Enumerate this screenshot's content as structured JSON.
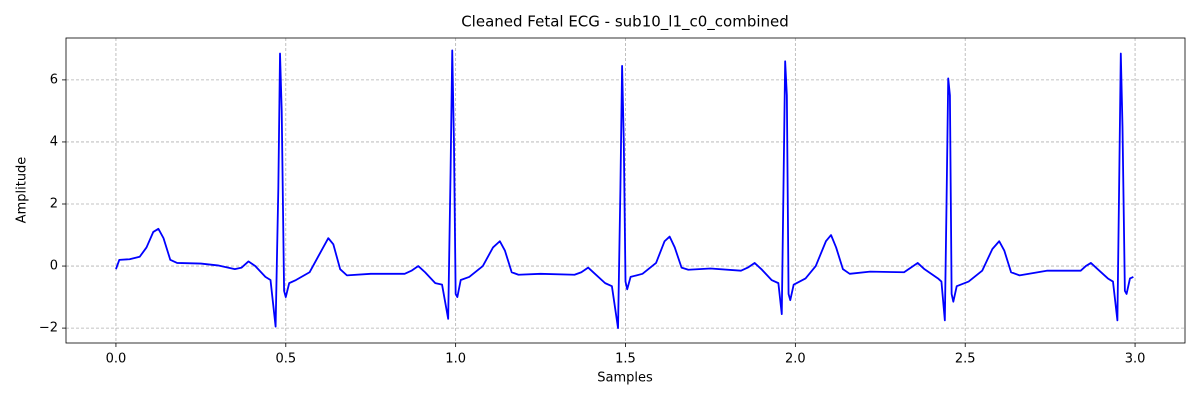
{
  "chart_data": {
    "type": "line",
    "title": "Cleaned Fetal ECG - sub10_l1_c0_combined",
    "xlabel": "Samples",
    "ylabel": "Amplitude",
    "color": "#0000ff",
    "grid": true,
    "xlim": [
      -0.147,
      3.147
    ],
    "ylim": [
      -2.48,
      7.35
    ],
    "xticks": [
      {
        "value": 0,
        "label": "0.0"
      },
      {
        "value": 0.5,
        "label": "0.5"
      },
      {
        "value": 1,
        "label": "1.0"
      },
      {
        "value": 1.5,
        "label": "1.5"
      },
      {
        "value": 2,
        "label": "2.0"
      },
      {
        "value": 2.5,
        "label": "2.5"
      },
      {
        "value": 3,
        "label": "3.0"
      }
    ],
    "yticks": [
      {
        "value": -2,
        "label": "−2"
      },
      0,
      2,
      4,
      6
    ],
    "x": [
      0.0,
      0.01,
      0.04,
      0.07,
      0.09,
      0.11,
      0.125,
      0.14,
      0.16,
      0.18,
      0.25,
      0.3,
      0.35,
      0.37,
      0.39,
      0.41,
      0.44,
      0.455,
      0.47,
      0.478,
      0.483,
      0.488,
      0.495,
      0.5,
      0.51,
      0.53,
      0.57,
      0.6,
      0.625,
      0.64,
      0.66,
      0.68,
      0.75,
      0.85,
      0.87,
      0.89,
      0.91,
      0.94,
      0.96,
      0.978,
      0.985,
      0.99,
      0.995,
      1.0,
      1.005,
      1.015,
      1.04,
      1.08,
      1.11,
      1.13,
      1.145,
      1.165,
      1.185,
      1.25,
      1.35,
      1.37,
      1.39,
      1.41,
      1.44,
      1.46,
      1.478,
      1.485,
      1.49,
      1.495,
      1.5,
      1.505,
      1.515,
      1.55,
      1.59,
      1.615,
      1.63,
      1.645,
      1.665,
      1.685,
      1.75,
      1.84,
      1.86,
      1.88,
      1.9,
      1.93,
      1.95,
      1.96,
      1.965,
      1.97,
      1.975,
      1.98,
      1.985,
      1.995,
      2.03,
      2.06,
      2.09,
      2.105,
      2.12,
      2.14,
      2.16,
      2.22,
      2.32,
      2.34,
      2.36,
      2.38,
      2.42,
      2.43,
      2.44,
      2.445,
      2.45,
      2.455,
      2.46,
      2.465,
      2.475,
      2.51,
      2.55,
      2.58,
      2.6,
      2.615,
      2.635,
      2.66,
      2.74,
      2.84,
      2.855,
      2.87,
      2.89,
      2.92,
      2.935,
      2.948,
      2.953,
      2.958,
      2.963,
      2.97,
      2.975,
      2.985,
      2.995
    ],
    "values": [
      -0.1,
      0.2,
      0.22,
      0.3,
      0.6,
      1.1,
      1.2,
      0.9,
      0.2,
      0.1,
      0.08,
      0.02,
      -0.1,
      -0.05,
      0.15,
      0.0,
      -0.35,
      -0.45,
      -1.95,
      2.5,
      6.85,
      5.0,
      -0.8,
      -1.0,
      -0.55,
      -0.45,
      -0.2,
      0.4,
      0.9,
      0.7,
      -0.1,
      -0.3,
      -0.25,
      -0.25,
      -0.15,
      0.0,
      -0.2,
      -0.55,
      -0.6,
      -1.7,
      3.0,
      6.95,
      4.0,
      -0.9,
      -1.0,
      -0.45,
      -0.35,
      0.0,
      0.6,
      0.8,
      0.5,
      -0.2,
      -0.28,
      -0.25,
      -0.28,
      -0.2,
      -0.05,
      -0.25,
      -0.55,
      -0.65,
      -2.0,
      2.5,
      6.45,
      4.0,
      -0.5,
      -0.75,
      -0.35,
      -0.25,
      0.1,
      0.8,
      0.95,
      0.6,
      -0.05,
      -0.12,
      -0.08,
      -0.15,
      -0.05,
      0.1,
      -0.1,
      -0.45,
      -0.55,
      -1.55,
      2.5,
      6.6,
      5.5,
      -0.9,
      -1.1,
      -0.6,
      -0.4,
      0.0,
      0.8,
      1.0,
      0.6,
      -0.1,
      -0.25,
      -0.18,
      -0.2,
      -0.05,
      0.1,
      -0.1,
      -0.4,
      -0.5,
      -1.75,
      2.0,
      6.05,
      5.5,
      -0.9,
      -1.15,
      -0.65,
      -0.5,
      -0.15,
      0.55,
      0.8,
      0.5,
      -0.2,
      -0.3,
      -0.15,
      -0.15,
      0.0,
      0.1,
      -0.1,
      -0.4,
      -0.5,
      -1.75,
      2.5,
      6.85,
      4.5,
      -0.8,
      -0.9,
      -0.4,
      -0.35
    ]
  }
}
